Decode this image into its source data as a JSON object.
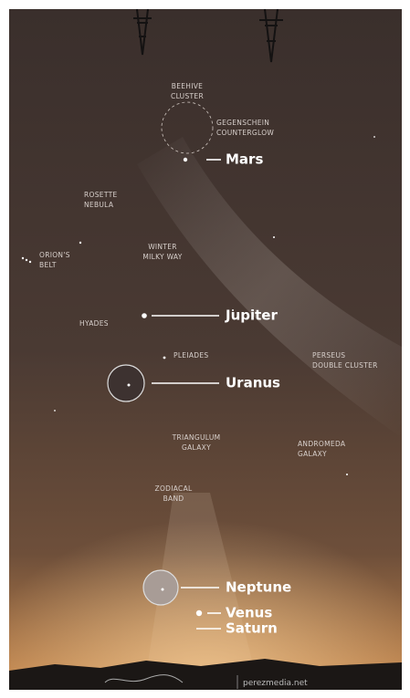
{
  "sky_objects": [
    {
      "lines": [
        "BEEHIVE",
        "CLUSTER"
      ]
    },
    {
      "lines": [
        "GEGENSCHEIN",
        "COUNTERGLOW"
      ]
    },
    {
      "lines": [
        "ROSETTE",
        "NEBULA"
      ]
    },
    {
      "lines": [
        "ORION'S",
        "BELT"
      ]
    },
    {
      "lines": [
        "WINTER",
        "MILKY WAY"
      ]
    },
    {
      "lines": [
        "HYADES"
      ]
    },
    {
      "lines": [
        "PLEIADES"
      ]
    },
    {
      "lines": [
        "PERSEUS",
        "DOUBLE CLUSTER"
      ]
    },
    {
      "lines": [
        "TRIANGULUM",
        "GALAXY"
      ]
    },
    {
      "lines": [
        "ANDROMEDA",
        "GALAXY"
      ]
    },
    {
      "lines": [
        "ZODIACAL",
        "BAND"
      ]
    }
  ],
  "planets": [
    "Mars",
    "Jupiter",
    "Uranus",
    "Neptune",
    "Venus",
    "Saturn"
  ],
  "credit": "perezmedia.net"
}
